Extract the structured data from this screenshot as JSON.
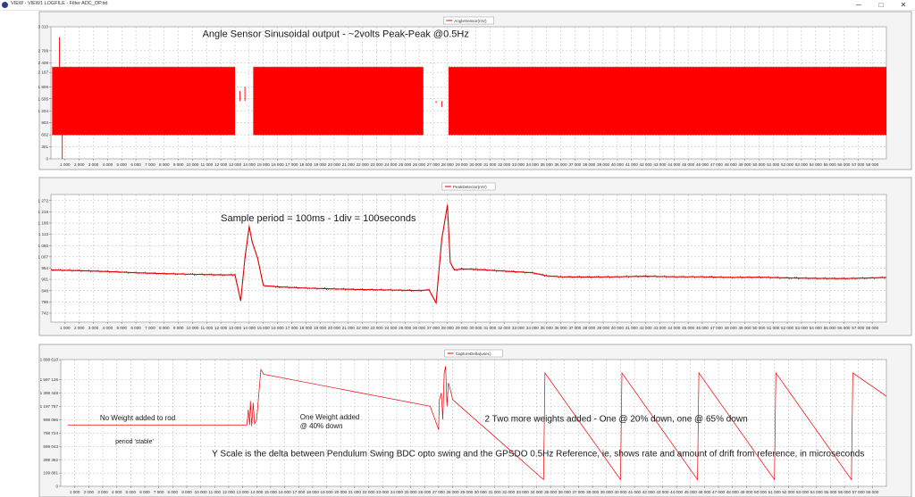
{
  "window": {
    "title": "VIEW - VIEW1  LOGFILE - Filter ADC_OP.txt",
    "minimize_glyph": "─",
    "maximize_glyph": "□",
    "close_glyph": "✕",
    "icon": "app-icon"
  },
  "chart_data": [
    {
      "type": "line",
      "legend": "AngleSensor(mV)",
      "legend_placement": "top-center",
      "grid": true,
      "color": "#ff0000",
      "xlim": [
        0,
        59000
      ],
      "ylim": [
        0,
        3310
      ],
      "x_ticks": [
        "1 000",
        "2 000",
        "3 000",
        "4 000",
        "5 000",
        "6 000",
        "7 000",
        "8 000",
        "9 000",
        "10 000",
        "11 000",
        "12 000",
        "13 000",
        "14 000",
        "15 000",
        "16 000",
        "17 000",
        "18 000",
        "19 000",
        "20 000",
        "21 000",
        "22 000",
        "23 000",
        "24 000",
        "25 000",
        "26 000",
        "27 000",
        "28 000",
        "29 000",
        "30 000",
        "31 000",
        "32 000",
        "33 000",
        "34 000",
        "35 000",
        "36 000",
        "37 000",
        "38 000",
        "39 000",
        "40 000",
        "41 000",
        "42 000",
        "43 000",
        "44 000",
        "45 000",
        "46 000",
        "47 000",
        "48 000",
        "49 000",
        "50 000",
        "51 000",
        "52 000",
        "53 000",
        "54 000",
        "55 000",
        "56 000",
        "57 000",
        "58 000"
      ],
      "y_ticks": [
        {
          "value": 3310,
          "label": "3 310"
        },
        {
          "value": 2709,
          "label": "2 709"
        },
        {
          "value": 2408,
          "label": "2 408"
        },
        {
          "value": 2167,
          "label": "2 167"
        },
        {
          "value": 1806,
          "label": "1 806"
        },
        {
          "value": 1505,
          "label": "1 505"
        },
        {
          "value": 1204,
          "label": "1 204"
        },
        {
          "value": 903,
          "label": "903"
        },
        {
          "value": 602,
          "label": "602"
        },
        {
          "value": 301,
          "label": "301"
        },
        {
          "value": 0,
          "label": "0"
        }
      ],
      "bands": [
        {
          "x": [
            100,
            13000
          ],
          "y": [
            600,
            2300
          ]
        },
        {
          "x": [
            14300,
            26300
          ],
          "y": [
            600,
            2300
          ]
        },
        {
          "x": [
            28100,
            59000
          ],
          "y": [
            600,
            2300
          ]
        }
      ],
      "spikes": [
        {
          "x": 600,
          "y": 3050
        },
        {
          "x": 800,
          "y": 0
        },
        {
          "x": 13350,
          "y": 1700
        },
        {
          "x": 13700,
          "y": 1800
        },
        {
          "x": 27200,
          "y": 1400
        },
        {
          "x": 27600,
          "y": 1300
        }
      ],
      "annotations": [
        {
          "text": "Angle Sensor Sinusoidal output - ~2volts Peak-Peak @0.5Hz",
          "x": 10700,
          "y": 3050
        }
      ]
    },
    {
      "type": "line",
      "legend": "PeakDetector(mV)",
      "legend_placement": "top-center",
      "grid": true,
      "color": "#dd0000",
      "xlim": [
        0,
        59000
      ],
      "ylim": [
        700,
        1300
      ],
      "x_ticks": [
        "1 000",
        "2 000",
        "3 000",
        "4 000",
        "5 000",
        "6 000",
        "7 000",
        "8 000",
        "9 000",
        "10 000",
        "11 000",
        "12 000",
        "13 000",
        "14 000",
        "15 000",
        "16 000",
        "17 000",
        "18 000",
        "19 000",
        "20 000",
        "21 000",
        "22 000",
        "23 000",
        "24 000",
        "25 000",
        "26 000",
        "27 000",
        "28 000",
        "29 000",
        "30 000",
        "31 000",
        "32 000",
        "33 000",
        "34 000",
        "35 000",
        "36 000",
        "37 000",
        "38 000",
        "39 000",
        "40 000",
        "41 000",
        "42 000",
        "43 000",
        "44 000",
        "45 000",
        "46 000",
        "47 000",
        "48 000",
        "49 000",
        "50 000",
        "51 000",
        "52 000",
        "53 000",
        "54 000",
        "55 000",
        "56 000",
        "57 000",
        "58 000"
      ],
      "y_ticks": [
        {
          "value": 1272,
          "label": "1 272"
        },
        {
          "value": 1219,
          "label": "1 219"
        },
        {
          "value": 1166,
          "label": "1 166"
        },
        {
          "value": 1113,
          "label": "1 113"
        },
        {
          "value": 1060,
          "label": "1 060"
        },
        {
          "value": 1007,
          "label": "1 007"
        },
        {
          "value": 954,
          "label": "954"
        },
        {
          "value": 901,
          "label": "901"
        },
        {
          "value": 848,
          "label": "848"
        },
        {
          "value": 795,
          "label": "795"
        },
        {
          "value": 742,
          "label": "742"
        }
      ],
      "series": [
        {
          "x": [
            0,
            2000,
            4000,
            6000,
            8000,
            10000,
            12000,
            13000,
            13400,
            13700,
            14000,
            14200,
            14600,
            15000,
            16000,
            18000,
            20000,
            22000,
            24000,
            26000,
            26700,
            27200,
            27600,
            28000,
            28200,
            28500,
            29000,
            30000,
            32000,
            34000,
            35000,
            36000,
            38000,
            40000,
            42000,
            44000,
            46000,
            48000,
            50000,
            52000,
            54000,
            56000,
            58000,
            59000
          ],
          "y": [
            945,
            942,
            938,
            932,
            928,
            925,
            922,
            922,
            800,
            1000,
            1150,
            1080,
            1000,
            872,
            866,
            860,
            856,
            853,
            851,
            848,
            852,
            790,
            1090,
            1250,
            980,
            945,
            950,
            948,
            940,
            932,
            918,
            913,
            912,
            913,
            916,
            913,
            913,
            910,
            911,
            908,
            906,
            905,
            908,
            910
          ]
        }
      ],
      "annotations": [
        {
          "text": "Sample period = 100ms - 1div = 100seconds",
          "x": 12000,
          "y": 1175
        }
      ]
    },
    {
      "type": "line",
      "legend": "CaptureDelta(usec)",
      "legend_placement": "top-center",
      "grid": true,
      "color": "#ee0000",
      "xlim": [
        0,
        59000
      ],
      "ylim": [
        0,
        1900
      ],
      "x_ticks": [
        "1 000",
        "2 000",
        "3 000",
        "4 000",
        "5 000",
        "6 000",
        "7 000",
        "8 000",
        "9 000",
        "10 000",
        "11 000",
        "12 000",
        "13 000",
        "14 000",
        "15 000",
        "16 000",
        "17 000",
        "18 000",
        "19 000",
        "20 000",
        "21 000",
        "22 000",
        "23 000",
        "24 000",
        "25 000",
        "26 000",
        "27 000",
        "28 000",
        "29 000",
        "30 000",
        "31 000",
        "32 000",
        "33 000",
        "34 000",
        "35 000",
        "36 000",
        "37 000",
        "38 000",
        "39 000",
        "40 000",
        "41 000",
        "42 000",
        "43 000",
        "44 000",
        "45 000",
        "46 000",
        "47 000",
        "48 000",
        "49 000",
        "50 000",
        "51 000",
        "52 000",
        "53 000",
        "54 000",
        "55 000",
        "56 000",
        "57 000",
        "58 000"
      ],
      "y_ticks": [
        {
          "value": 1898,
          "label": "1 898 610"
        },
        {
          "value": 1597,
          "label": "1 597 126"
        },
        {
          "value": 1398,
          "label": "1 398 448"
        },
        {
          "value": 1197,
          "label": "1 197 767"
        },
        {
          "value": 998,
          "label": "998 086"
        },
        {
          "value": 798,
          "label": "798 724"
        },
        {
          "value": 599,
          "label": "599 043"
        },
        {
          "value": 399,
          "label": "399 362"
        },
        {
          "value": 199,
          "label": "199 681"
        },
        {
          "value": 0,
          "label": "0"
        }
      ],
      "series": [
        {
          "x": [
            500,
            13300,
            13400,
            13500,
            13550,
            13650,
            13750,
            13850,
            14000,
            14300,
            14500,
            26400,
            27000,
            27050,
            27200,
            27300,
            27400,
            27500,
            27600,
            27700,
            27900,
            28000,
            34500,
            34600,
            40000,
            40100,
            45500,
            45600,
            51000,
            51100,
            56500,
            56600,
            59000
          ],
          "y": [
            920,
            920,
            1150,
            920,
            1280,
            900,
            1250,
            940,
            1000,
            1750,
            1680,
            1200,
            850,
            1290,
            1400,
            1000,
            1700,
            1800,
            1200,
            1550,
            1400,
            1300,
            100,
            1700,
            100,
            1700,
            100,
            1700,
            100,
            1700,
            100,
            1700,
            1350
          ]
        }
      ],
      "annotations": [
        {
          "text": "No Weight added to rod",
          "x": 2800,
          "y": 990
        },
        {
          "text": "period 'stable'",
          "x": 3900,
          "y": 640
        },
        {
          "text": "One Weight added",
          "x": 17100,
          "y": 1005
        },
        {
          "text": "@ 40% down",
          "x": 17100,
          "y": 868
        },
        {
          "text": "2 Two more weights added - One @ 20% down, one @ 65% down",
          "x": 30300,
          "y": 970
        },
        {
          "text": "Y Scale is the delta between Pendulum Swing BDC opto swing and the GPSDO 0.5Hz Reference, ie, shows rate and amount of drift from reference, in microseconds",
          "x": 10800,
          "y": 445
        }
      ]
    }
  ]
}
